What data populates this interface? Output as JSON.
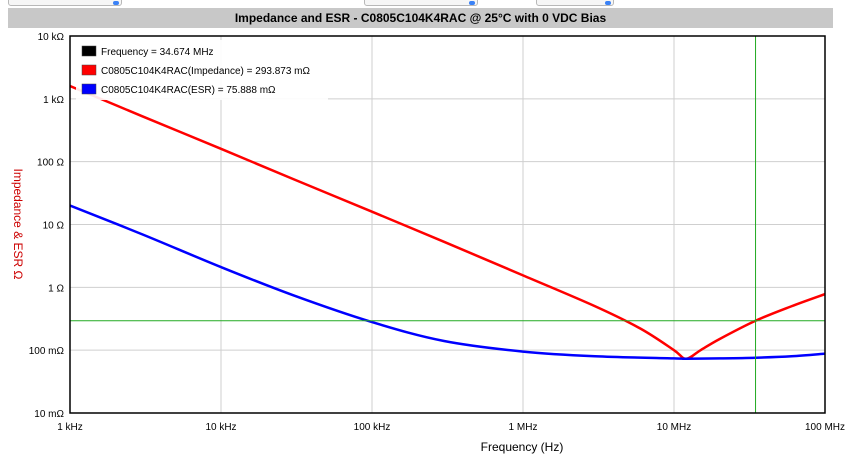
{
  "chart_data": {
    "type": "line",
    "title": "Impedance and ESR - C0805C104K4RAC @ 25°C with 0 VDC Bias",
    "xlabel": "Frequency (Hz)",
    "ylabel": "Impedance & ESR Ω",
    "x_scale": "log",
    "y_scale": "log",
    "xlim_hz": [
      1000,
      100000000
    ],
    "ylim_ohm": [
      0.01,
      10000
    ],
    "x_ticks": [
      {
        "value": 1000,
        "label": "1 kHz"
      },
      {
        "value": 10000,
        "label": "10 kHz"
      },
      {
        "value": 100000,
        "label": "100 kHz"
      },
      {
        "value": 1000000,
        "label": "1 MHz"
      },
      {
        "value": 10000000,
        "label": "10 MHz"
      },
      {
        "value": 100000000,
        "label": "100 MHz"
      }
    ],
    "y_ticks": [
      {
        "value": 10000,
        "label": "10 kΩ"
      },
      {
        "value": 1000,
        "label": "1 kΩ"
      },
      {
        "value": 100,
        "label": "100 Ω"
      },
      {
        "value": 10,
        "label": "10 Ω"
      },
      {
        "value": 1,
        "label": "1 Ω"
      },
      {
        "value": 0.1,
        "label": "100 mΩ"
      },
      {
        "value": 0.01,
        "label": "10 mΩ"
      }
    ],
    "grid": true,
    "legend_position": "top-left",
    "legend": [
      {
        "label": "Frequency = 34.674 MHz",
        "color": "#000000"
      },
      {
        "label": "C0805C104K4RAC(Impedance) = 293.873 mΩ",
        "color": "#ff0000"
      },
      {
        "label": "C0805C104K4RAC(ESR) = 75.888 mΩ",
        "color": "#0000ff"
      }
    ],
    "cursor": {
      "x_hz": 34674000,
      "y_ohm": 0.293873,
      "color": "#22aa22"
    },
    "series": [
      {
        "name": "C0805C104K4RAC(Impedance)",
        "color": "#ff0000",
        "x": [
          1000,
          3000,
          10000,
          30000,
          100000,
          300000,
          1000000,
          3000000,
          6000000,
          10000000,
          12000000,
          15000000,
          20000000,
          34674000,
          60000000,
          100000000
        ],
        "y": [
          1600,
          530,
          160,
          53,
          16,
          5.3,
          1.55,
          0.5,
          0.22,
          0.1,
          0.073,
          0.1,
          0.15,
          0.293873,
          0.5,
          0.78
        ]
      },
      {
        "name": "C0805C104K4RAC(ESR)",
        "color": "#0000ff",
        "x": [
          1000,
          3000,
          10000,
          30000,
          100000,
          300000,
          1000000,
          3000000,
          10000000,
          12000000,
          20000000,
          34674000,
          60000000,
          100000000
        ],
        "y": [
          20,
          7,
          2.1,
          0.75,
          0.28,
          0.14,
          0.095,
          0.08,
          0.074,
          0.073,
          0.074,
          0.075888,
          0.08,
          0.088
        ]
      }
    ]
  }
}
